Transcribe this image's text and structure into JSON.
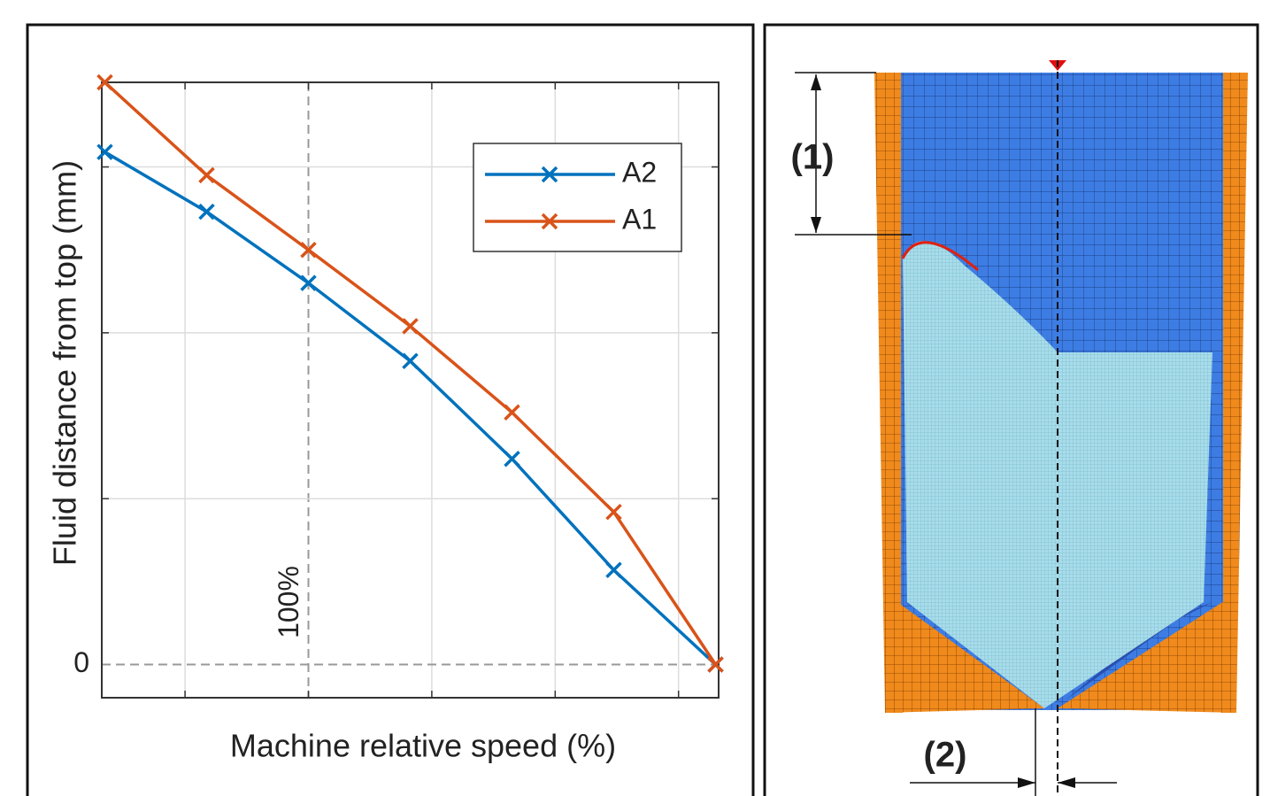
{
  "chart_data": {
    "type": "line",
    "xlabel": "Machine relative speed (%)",
    "ylabel": "Fluid distance from top (mm)",
    "x": [
      67,
      83.5,
      100,
      116.5,
      133,
      149.5,
      166
    ],
    "series": [
      {
        "name": "A2",
        "color": "#0072bd",
        "values": [
          3.09,
          2.73,
          2.3,
          1.83,
          1.24,
          0.57,
          0
        ]
      },
      {
        "name": "A1",
        "color": "#d95319",
        "values": [
          3.51,
          2.95,
          2.5,
          2.04,
          1.52,
          0.92,
          0
        ]
      }
    ],
    "xlim": [
      66.5,
      166.5
    ],
    "ylim": [
      -0.2,
      3.51
    ],
    "xticks": [
      80,
      {
        "value": 100,
        "label": "100%"
      },
      120,
      140,
      160
    ],
    "yticks": [
      0
    ],
    "ygrid": [
      1,
      2,
      3
    ],
    "grid": true,
    "legend": "upper right"
  },
  "figure": {
    "labels": [
      "(1)",
      "(2)"
    ]
  }
}
